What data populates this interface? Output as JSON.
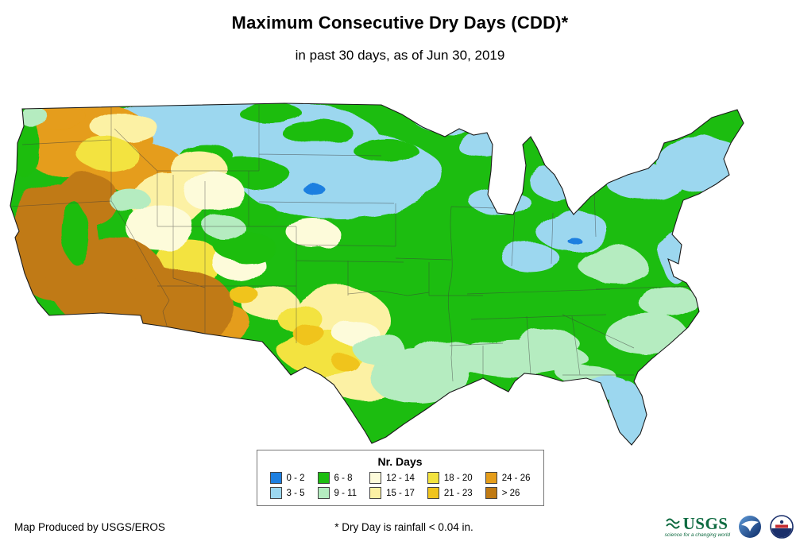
{
  "title": "Maximum Consecutive Dry Days (CDD)*",
  "subtitle": "in past 30 days, as of Jun 30, 2019",
  "legend": {
    "title": "Nr. Days",
    "items": [
      {
        "label": "0 - 2",
        "color": "#1d7fe0"
      },
      {
        "label": "3 - 5",
        "color": "#9cd7ef"
      },
      {
        "label": "6 - 8",
        "color": "#1cbd10"
      },
      {
        "label": "9 - 11",
        "color": "#b5ecc0"
      },
      {
        "label": "12 - 14",
        "color": "#fdfbda"
      },
      {
        "label": "15 - 17",
        "color": "#fcf1a4"
      },
      {
        "label": "18 - 20",
        "color": "#f3e33f"
      },
      {
        "label": "21 - 23",
        "color": "#f0c41d"
      },
      {
        "label": "24 - 26",
        "color": "#e59d1a"
      },
      {
        "label": "> 26",
        "color": "#c07a13"
      }
    ]
  },
  "footer": {
    "credit": "Map Produced by USGS/EROS",
    "note": "* Dry Day is rainfall < 0.04 in."
  },
  "logos": {
    "usgs_text": "USGS",
    "usgs_tagline": "science for a changing world"
  }
}
